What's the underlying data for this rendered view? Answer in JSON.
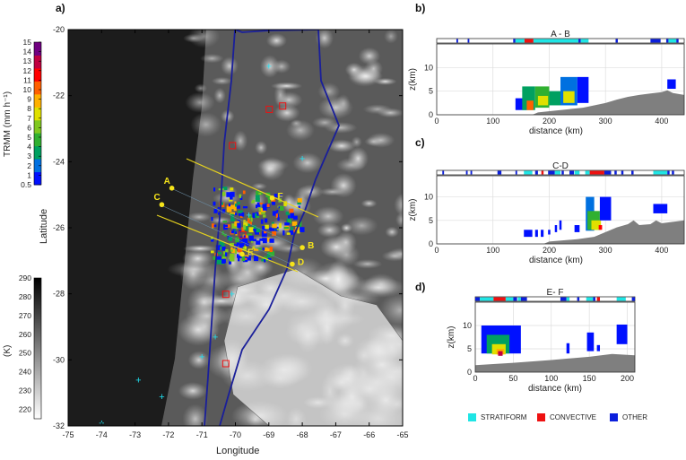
{
  "panels": {
    "a": "a)",
    "b": "b)",
    "c": "c)",
    "d": "d)"
  },
  "map": {
    "xlabel": "Longitude",
    "ylabel": "Latitude",
    "lon_ticks": [
      -75,
      -74,
      -73,
      -72,
      -71,
      -70,
      -69,
      -68,
      -67,
      -66,
      -65
    ],
    "lat_ticks": [
      -20,
      -22,
      -24,
      -26,
      -28,
      -30,
      -32
    ],
    "lon_range": [
      -75,
      -65
    ],
    "lat_range": [
      -32,
      -20
    ],
    "points": [
      {
        "label": "A",
        "lon": -71.9,
        "lat": -24.8
      },
      {
        "label": "B",
        "lon": -68.0,
        "lat": -26.6
      },
      {
        "label": "C",
        "lon": -72.2,
        "lat": -25.3
      },
      {
        "label": "D",
        "lon": -68.3,
        "lat": -27.1
      },
      {
        "label": "E",
        "lon": -69.8,
        "lat": -26.8
      },
      {
        "label": "F",
        "lon": -68.9,
        "lat": -25.1
      }
    ],
    "colors": {
      "border": "#1a1f9a",
      "transect": "#e6d21e",
      "marker": "#f5e31a"
    }
  },
  "colorbar_trmm": {
    "label": "TRMM (mm h⁻¹)",
    "ticks": [
      "0.5",
      "1",
      "2",
      "3",
      "4",
      "5",
      "6",
      "7",
      "8",
      "9",
      "10",
      "11",
      "12",
      "13",
      "14",
      "15"
    ],
    "range": [
      0.5,
      15
    ],
    "colors": [
      "#0010ff",
      "#0070e0",
      "#00a060",
      "#30b030",
      "#80c820",
      "#e0e000",
      "#ffb000",
      "#ff6000",
      "#ff0000",
      "#c00040",
      "#700080"
    ]
  },
  "colorbar_tb": {
    "label": "(K)",
    "ticks": [
      "220",
      "230",
      "240",
      "250",
      "260",
      "270",
      "280",
      "290"
    ],
    "range": [
      215,
      290
    ]
  },
  "chart_data": [
    {
      "type": "area",
      "panel": "b",
      "title": "A - B",
      "xlabel": "distance (km)",
      "ylabel": "z(km)",
      "xlim": [
        0,
        440
      ],
      "ylim": [
        0,
        15
      ],
      "xticks": [
        0,
        100,
        200,
        300,
        400
      ],
      "yticks": [
        0,
        5,
        10
      ],
      "grid": true,
      "terrain": [
        [
          0,
          0
        ],
        [
          170,
          0
        ],
        [
          180,
          0.5
        ],
        [
          220,
          1
        ],
        [
          260,
          1.5
        ],
        [
          300,
          2.5
        ],
        [
          320,
          3.2
        ],
        [
          340,
          3.8
        ],
        [
          360,
          4.2
        ],
        [
          380,
          4.5
        ],
        [
          400,
          4.8
        ],
        [
          410,
          5.2
        ],
        [
          420,
          4.6
        ],
        [
          440,
          4.2
        ]
      ],
      "classification": [
        [
          35,
          38,
          "OTHER"
        ],
        [
          55,
          58,
          "OTHER"
        ],
        [
          136,
          140,
          "OTHER"
        ],
        [
          140,
          156,
          "STRATIFORM"
        ],
        [
          156,
          172,
          "CONVECTIVE"
        ],
        [
          172,
          252,
          "STRATIFORM"
        ],
        [
          252,
          256,
          "OTHER"
        ],
        [
          256,
          270,
          "STRATIFORM"
        ],
        [
          318,
          322,
          "OTHER"
        ],
        [
          380,
          398,
          "OTHER"
        ],
        [
          408,
          412,
          "OTHER"
        ],
        [
          412,
          426,
          "STRATIFORM"
        ],
        [
          426,
          430,
          "OTHER"
        ]
      ],
      "echoes": [
        [
          140,
          160,
          1,
          3.5,
          1
        ],
        [
          152,
          175,
          1,
          6,
          3
        ],
        [
          160,
          172,
          1,
          3,
          10
        ],
        [
          175,
          200,
          1.5,
          6,
          4
        ],
        [
          180,
          198,
          2,
          4,
          7
        ],
        [
          200,
          220,
          2,
          5,
          3
        ],
        [
          220,
          250,
          2,
          8,
          2.5
        ],
        [
          225,
          245,
          2.5,
          5,
          6
        ],
        [
          250,
          270,
          2.5,
          8,
          1
        ],
        [
          410,
          425,
          5.5,
          7.5,
          1
        ]
      ]
    },
    {
      "type": "area",
      "panel": "c",
      "title": "C-D",
      "xlabel": "distance (km)",
      "ylabel": "z(km)",
      "xlim": [
        0,
        440
      ],
      "ylim": [
        0,
        14.5
      ],
      "xticks": [
        0,
        100,
        200,
        300,
        400
      ],
      "yticks": [
        0,
        5,
        10
      ],
      "grid": true,
      "terrain": [
        [
          0,
          0
        ],
        [
          190,
          0
        ],
        [
          200,
          0.5
        ],
        [
          250,
          1
        ],
        [
          280,
          1.5
        ],
        [
          300,
          2.5
        ],
        [
          320,
          3.5
        ],
        [
          340,
          4.2
        ],
        [
          350,
          5
        ],
        [
          360,
          4
        ],
        [
          380,
          4.2
        ],
        [
          390,
          5
        ],
        [
          400,
          4.4
        ],
        [
          440,
          5
        ]
      ],
      "classification": [
        [
          10,
          13,
          "OTHER"
        ],
        [
          52,
          55,
          "OTHER"
        ],
        [
          60,
          63,
          "OTHER"
        ],
        [
          108,
          115,
          "OTHER"
        ],
        [
          140,
          143,
          "OTHER"
        ],
        [
          155,
          170,
          "STRATIFORM"
        ],
        [
          175,
          180,
          "OTHER"
        ],
        [
          186,
          190,
          "CONVECTIVE"
        ],
        [
          198,
          210,
          "OTHER"
        ],
        [
          210,
          220,
          "STRATIFORM"
        ],
        [
          222,
          226,
          "OTHER"
        ],
        [
          236,
          244,
          "OTHER"
        ],
        [
          245,
          254,
          "STRATIFORM"
        ],
        [
          264,
          272,
          "STRATIFORM"
        ],
        [
          272,
          298,
          "CONVECTIVE"
        ],
        [
          298,
          310,
          "OTHER"
        ],
        [
          316,
          320,
          "OTHER"
        ],
        [
          328,
          332,
          "OTHER"
        ],
        [
          346,
          350,
          "OTHER"
        ],
        [
          385,
          410,
          "STRATIFORM"
        ],
        [
          410,
          414,
          "OTHER"
        ],
        [
          418,
          422,
          "OTHER"
        ]
      ],
      "echoes": [
        [
          155,
          170,
          1.5,
          3,
          1
        ],
        [
          175,
          180,
          1.5,
          3,
          1
        ],
        [
          185,
          190,
          1.5,
          3,
          1
        ],
        [
          198,
          202,
          2,
          3,
          1
        ],
        [
          210,
          214,
          2.5,
          4,
          1
        ],
        [
          218,
          222,
          3,
          5,
          1
        ],
        [
          245,
          254,
          2.5,
          4,
          1
        ],
        [
          265,
          280,
          2.8,
          10,
          2
        ],
        [
          268,
          290,
          3,
          7,
          4
        ],
        [
          275,
          292,
          3,
          5,
          7
        ],
        [
          288,
          294,
          3,
          4,
          11
        ],
        [
          290,
          310,
          5,
          10,
          1
        ],
        [
          385,
          410,
          6.5,
          8.5,
          1
        ]
      ]
    },
    {
      "type": "area",
      "panel": "d",
      "title": "E- F",
      "xlabel": "distance (km)",
      "ylabel": "z(km)",
      "xlim": [
        0,
        210
      ],
      "ylim": [
        0,
        15
      ],
      "xticks": [
        0,
        50,
        100,
        150,
        200
      ],
      "yticks": [
        0,
        5,
        10
      ],
      "grid": true,
      "terrain": [
        [
          0,
          1.5
        ],
        [
          50,
          2
        ],
        [
          100,
          2.6
        ],
        [
          150,
          3.3
        ],
        [
          180,
          3.9
        ],
        [
          210,
          3.6
        ]
      ],
      "classification": [
        [
          0,
          6,
          "OTHER"
        ],
        [
          6,
          24,
          "STRATIFORM"
        ],
        [
          24,
          40,
          "CONVECTIVE"
        ],
        [
          40,
          50,
          "STRATIFORM"
        ],
        [
          50,
          55,
          "OTHER"
        ],
        [
          56,
          60,
          "STRATIFORM"
        ],
        [
          60,
          68,
          "OTHER"
        ],
        [
          112,
          120,
          "OTHER"
        ],
        [
          120,
          124,
          "STRATIFORM"
        ],
        [
          134,
          137,
          "OTHER"
        ],
        [
          146,
          155,
          "STRATIFORM"
        ],
        [
          155,
          158,
          "OTHER"
        ],
        [
          160,
          164,
          "CONVECTIVE"
        ],
        [
          186,
          198,
          "STRATIFORM"
        ],
        [
          206,
          210,
          "OTHER"
        ]
      ],
      "echoes": [
        [
          8,
          60,
          4,
          10,
          1
        ],
        [
          15,
          45,
          4,
          8,
          3
        ],
        [
          22,
          40,
          3.8,
          6,
          6
        ],
        [
          28,
          38,
          3.8,
          5,
          9
        ],
        [
          30,
          36,
          3.5,
          4.5,
          14
        ],
        [
          120,
          124,
          4,
          6.2,
          1
        ],
        [
          147,
          156,
          4.5,
          8.5,
          1
        ],
        [
          160,
          164,
          4.5,
          5.8,
          1
        ],
        [
          186,
          200,
          6,
          10.2,
          1
        ]
      ]
    }
  ],
  "legend": [
    {
      "label": "STRATIFORM",
      "color": "#1fe5e5"
    },
    {
      "label": "CONVECTIVE",
      "color": "#ee1111"
    },
    {
      "label": "OTHER",
      "color": "#0b1fdc"
    }
  ]
}
